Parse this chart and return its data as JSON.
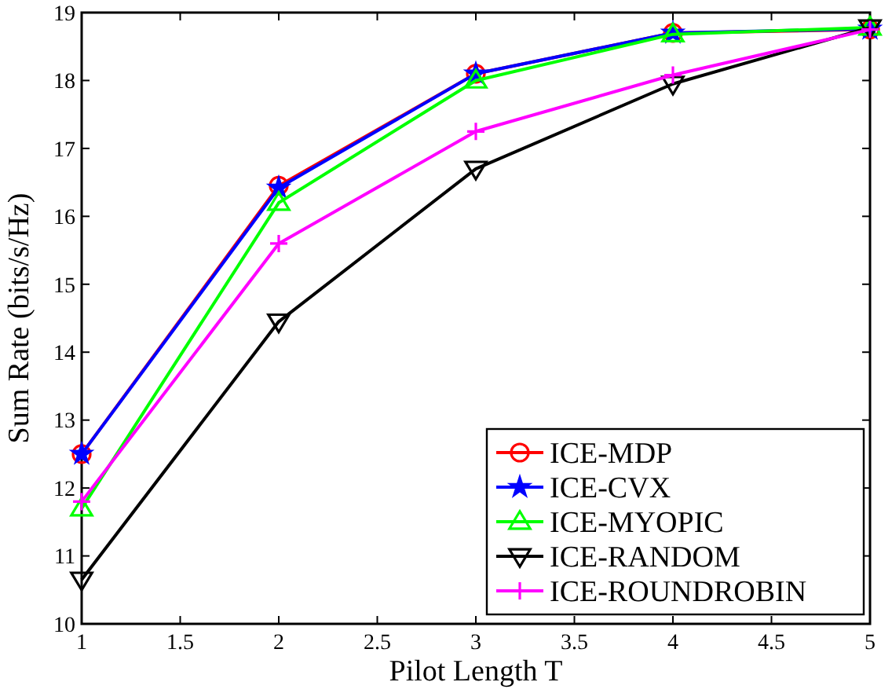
{
  "chart_data": {
    "type": "line",
    "xlabel": "Pilot Length T",
    "ylabel": "Sum Rate (bits/s/Hz)",
    "x": [
      1,
      2,
      3,
      4,
      5
    ],
    "xlim": [
      1,
      5
    ],
    "xticks": [
      1,
      1.5,
      2,
      2.5,
      3,
      3.5,
      4,
      4.5,
      5
    ],
    "ylim": [
      10,
      19
    ],
    "yticks": [
      10,
      11,
      12,
      13,
      14,
      15,
      16,
      17,
      18,
      19
    ],
    "grid": false,
    "legend": "bottom right",
    "line_style": "solid",
    "series": [
      {
        "name": "ICE-MDP",
        "color": "#ff0000",
        "marker": "circle",
        "values": [
          12.5,
          16.45,
          18.1,
          18.7,
          18.75
        ]
      },
      {
        "name": "ICE-CVX",
        "color": "#0000ff",
        "marker": "star",
        "values": [
          12.5,
          16.42,
          18.1,
          18.7,
          18.76
        ]
      },
      {
        "name": "ICE-MYOPIC",
        "color": "#00ff00",
        "marker": "triangle",
        "values": [
          11.7,
          16.2,
          18.0,
          18.68,
          18.78
        ]
      },
      {
        "name": "ICE-RANDOM",
        "color": "#000000",
        "marker": "triangle-down",
        "values": [
          10.65,
          14.45,
          16.7,
          17.95,
          18.78
        ]
      },
      {
        "name": "ICE-ROUNDROBIN",
        "color": "#ff00ff",
        "marker": "cross",
        "values": [
          11.8,
          15.6,
          17.25,
          18.08,
          18.75
        ]
      }
    ]
  }
}
